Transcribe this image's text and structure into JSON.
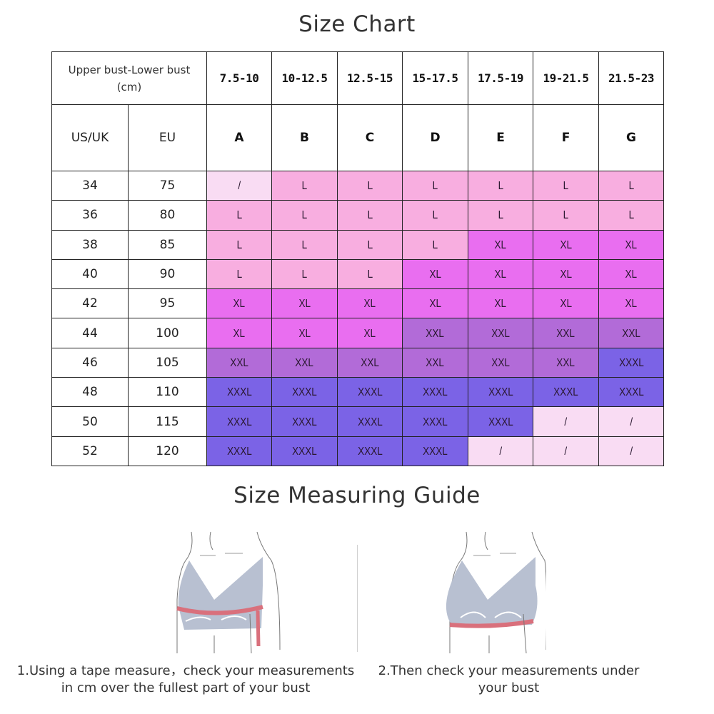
{
  "titles": {
    "chart": "Size Chart",
    "guide": "Size Measuring Guide"
  },
  "table": {
    "header_label_line1": "Upper bust-Lower bust",
    "header_label_line2": "(cm)",
    "col_us": "US/UK",
    "col_eu": "EU",
    "ranges": [
      "7.5-10",
      "10-12.5",
      "12.5-15",
      "15-17.5",
      "17.5-19",
      "19-21.5",
      "21.5-23"
    ],
    "cups": [
      "A",
      "B",
      "C",
      "D",
      "E",
      "F",
      "G"
    ],
    "rows": [
      {
        "us": "34",
        "eu": "75",
        "sizes": [
          "/",
          "L",
          "L",
          "L",
          "L",
          "L",
          "L"
        ]
      },
      {
        "us": "36",
        "eu": "80",
        "sizes": [
          "L",
          "L",
          "L",
          "L",
          "L",
          "L",
          "L"
        ]
      },
      {
        "us": "38",
        "eu": "85",
        "sizes": [
          "L",
          "L",
          "L",
          "L",
          "XL",
          "XL",
          "XL"
        ]
      },
      {
        "us": "40",
        "eu": "90",
        "sizes": [
          "L",
          "L",
          "L",
          "XL",
          "XL",
          "XL",
          "XL"
        ]
      },
      {
        "us": "42",
        "eu": "95",
        "sizes": [
          "XL",
          "XL",
          "XL",
          "XL",
          "XL",
          "XL",
          "XL"
        ]
      },
      {
        "us": "44",
        "eu": "100",
        "sizes": [
          "XL",
          "XL",
          "XL",
          "XXL",
          "XXL",
          "XXL",
          "XXL"
        ]
      },
      {
        "us": "46",
        "eu": "105",
        "sizes": [
          "XXL",
          "XXL",
          "XXL",
          "XXL",
          "XXL",
          "XXL",
          "XXXL"
        ]
      },
      {
        "us": "48",
        "eu": "110",
        "sizes": [
          "XXXL",
          "XXXL",
          "XXXL",
          "XXXL",
          "XXXL",
          "XXXL",
          "XXXL"
        ]
      },
      {
        "us": "50",
        "eu": "115",
        "sizes": [
          "XXXL",
          "XXXL",
          "XXXL",
          "XXXL",
          "XXXL",
          "/",
          "/"
        ]
      },
      {
        "us": "52",
        "eu": "120",
        "sizes": [
          "XXXL",
          "XXXL",
          "XXXL",
          "XXXL",
          "/",
          "/",
          "/"
        ]
      }
    ],
    "size_colors": {
      "/": "#f9dcf3",
      "L": "#f8aee0",
      "XL": "#e96ef0",
      "XXL": "#b26bd8",
      "XXXL": "#7b63e6"
    }
  },
  "guide": {
    "step1_line1": "1.Using a tape measure，check your measurements",
    "step1_line2": "in cm over the fullest part of your bust",
    "step2_line1": "2.Then check your measurements under",
    "step2_line2": "your bust",
    "illustration1": "upper-bust-measure-illustration",
    "illustration2": "under-bust-measure-illustration"
  }
}
